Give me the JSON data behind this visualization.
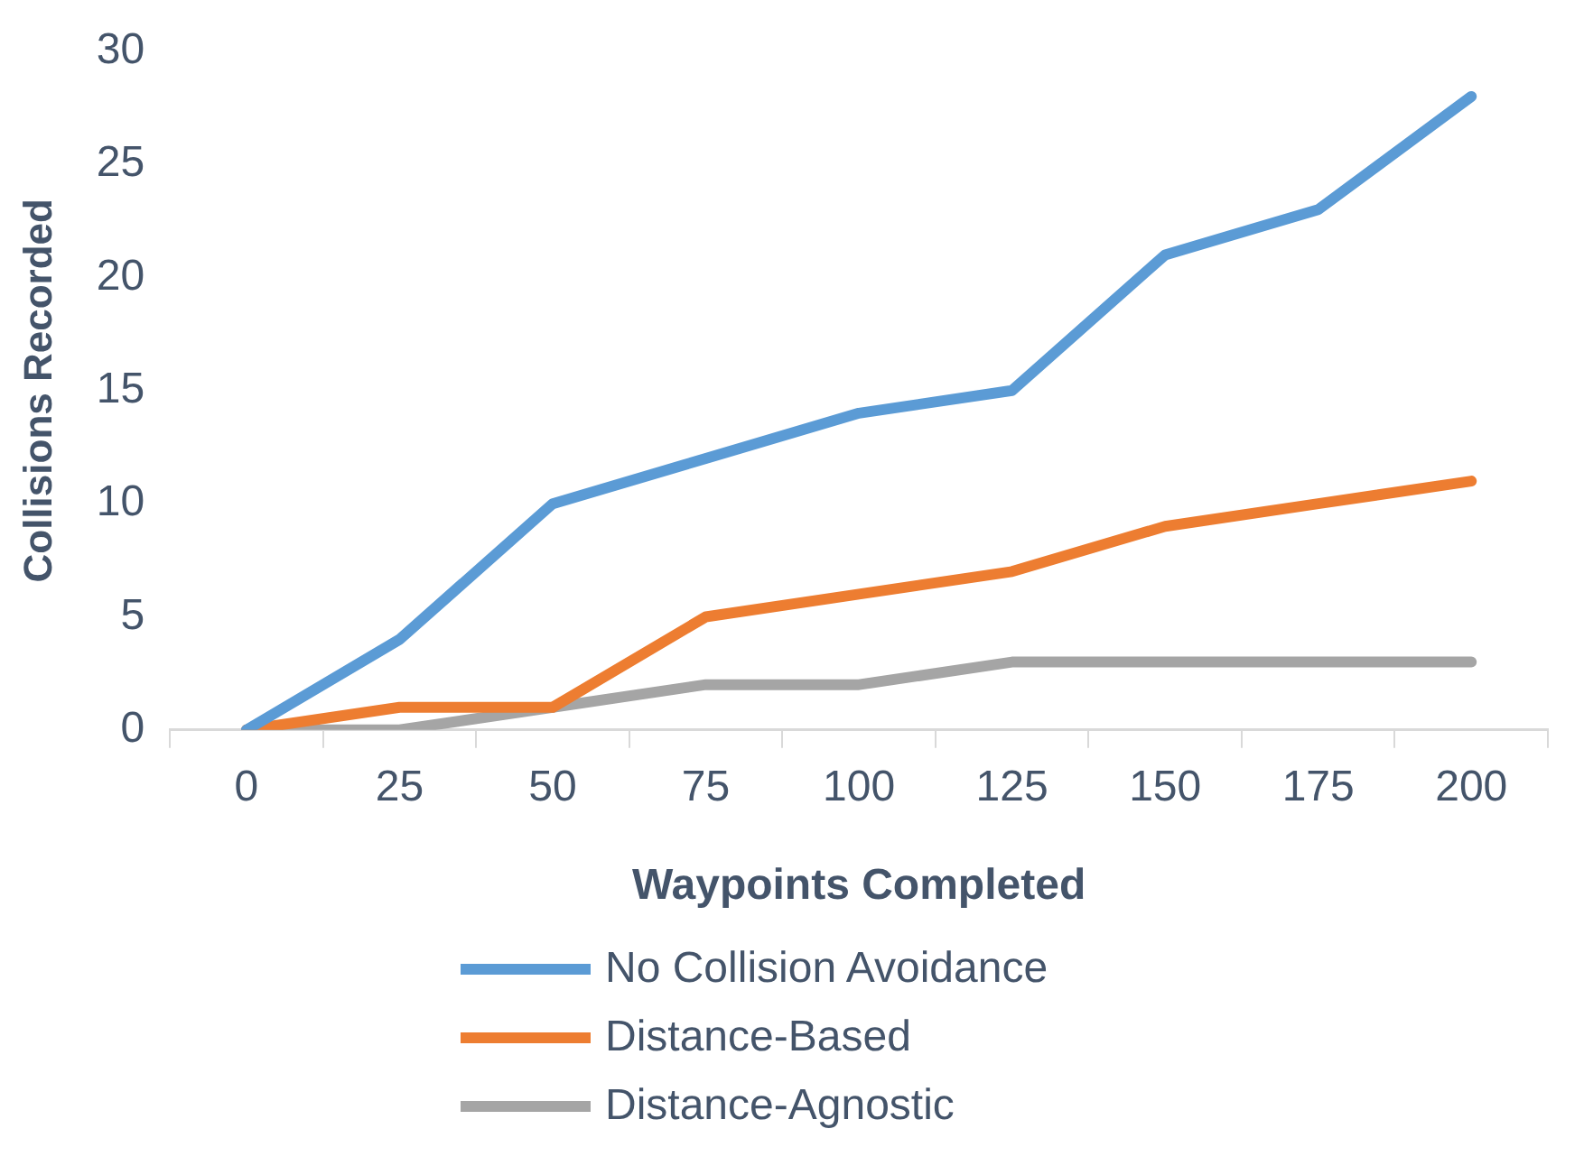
{
  "chart_data": {
    "type": "line",
    "xlabel": "Waypoints Completed",
    "ylabel": "Collisions Recorded",
    "categories": [
      "0",
      "25",
      "50",
      "75",
      "100",
      "125",
      "150",
      "175",
      "200"
    ],
    "series": [
      {
        "name": "No Collision Avoidance",
        "color": "#5b9bd5",
        "values": [
          0,
          4,
          10,
          12,
          14,
          15,
          21,
          23,
          28
        ]
      },
      {
        "name": "Distance-Based",
        "color": "#ed7d31",
        "values": [
          0,
          1,
          1,
          5,
          6,
          7,
          9,
          10,
          11
        ]
      },
      {
        "name": "Distance-Agnostic",
        "color": "#a5a5a5",
        "values": [
          0,
          0,
          1,
          2,
          2,
          3,
          3,
          3,
          3
        ]
      }
    ],
    "ylim": [
      0,
      30
    ],
    "yticks": [
      0,
      5,
      10,
      15,
      20,
      25,
      30
    ],
    "grid": false,
    "legend": "bottom",
    "marker": "none",
    "line_style": "solid"
  }
}
